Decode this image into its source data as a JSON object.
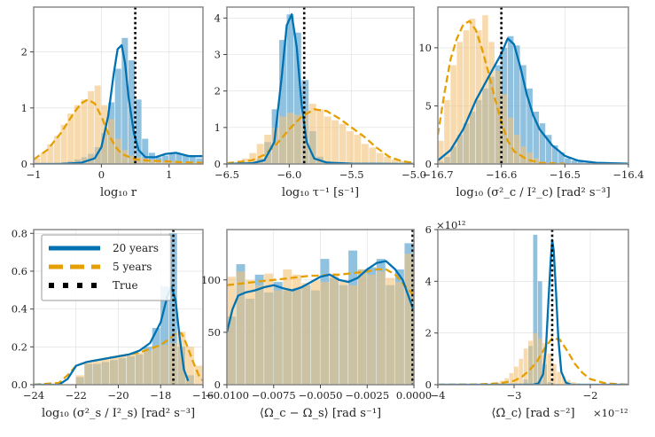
{
  "legend": {
    "entries": [
      {
        "label": "20 years",
        "color": "#0072B2",
        "style": "solid"
      },
      {
        "label": "5 years",
        "color": "#E69F00",
        "style": "dashed"
      },
      {
        "label": "True",
        "color": "#000000",
        "style": "dotted"
      }
    ],
    "panel": 3
  },
  "colors": {
    "twenty_years": "#0072B2",
    "five_years": "#E69F00",
    "true_value": "#000000",
    "hist_twenty": "#6BAED6",
    "hist_five": "#F3C27A",
    "grid": "#dddddd",
    "frame": "#888888"
  },
  "chart_data": [
    {
      "type": "area",
      "xlabel": "log₁₀ r",
      "xlim": [
        -1,
        1.5
      ],
      "ylim": [
        0,
        2.8
      ],
      "xticks": [
        -1,
        0,
        1
      ],
      "xticklabels": [
        "−1",
        "0",
        "1"
      ],
      "yticks": [
        0,
        1,
        2
      ],
      "yticklabels": [
        "0",
        "1",
        "2"
      ],
      "true_value": 0.5,
      "hist_range": [
        -1,
        1.5
      ],
      "hist_bins": 25,
      "series": [
        {
          "name": "20 years",
          "kde_x": [
            -1,
            -0.6,
            -0.3,
            -0.1,
            0.0,
            0.1,
            0.18,
            0.24,
            0.3,
            0.35,
            0.4,
            0.48,
            0.55,
            0.65,
            0.8,
            0.95,
            1.1,
            1.3,
            1.5
          ],
          "kde_y": [
            0,
            0,
            0.02,
            0.1,
            0.3,
            0.85,
            1.6,
            2.05,
            2.12,
            1.8,
            1.2,
            0.55,
            0.25,
            0.12,
            0.12,
            0.18,
            0.2,
            0.14,
            0.14
          ],
          "hist": [
            0,
            0,
            0,
            0.02,
            0.03,
            0.05,
            0.08,
            0.12,
            0.18,
            0.3,
            0.55,
            1.1,
            1.7,
            2.25,
            1.85,
            1.15,
            0.45,
            0.2,
            0.12,
            0.15,
            0.2,
            0.18,
            0.15,
            0.12,
            0.1
          ]
        },
        {
          "name": "5 years",
          "kde_x": [
            -1,
            -0.8,
            -0.6,
            -0.4,
            -0.3,
            -0.2,
            -0.1,
            0.0,
            0.1,
            0.2,
            0.3,
            0.5,
            0.7,
            0.9,
            1.2,
            1.5
          ],
          "kde_y": [
            0.08,
            0.25,
            0.55,
            0.92,
            1.08,
            1.15,
            1.08,
            0.85,
            0.55,
            0.32,
            0.18,
            0.08,
            0.06,
            0.05,
            0.03,
            0.02
          ],
          "hist": [
            0.1,
            0.2,
            0.35,
            0.5,
            0.7,
            0.9,
            1.05,
            1.15,
            1.3,
            1.4,
            1.05,
            0.8,
            0.45,
            0.25,
            0.15,
            0.12,
            0.1,
            0.08,
            0.06,
            0.05,
            0.05,
            0.04,
            0.03,
            0.03,
            0.02
          ]
        }
      ]
    },
    {
      "type": "area",
      "xlabel": "log₁₀ τ⁻¹ [s⁻¹]",
      "xlim": [
        -6.5,
        -5.0
      ],
      "ylim": [
        0,
        4.3
      ],
      "xticks": [
        -6.5,
        -6.0,
        -5.5,
        -5.0
      ],
      "xticklabels": [
        "−6.5",
        "−6.0",
        "−5.5",
        "−5.0"
      ],
      "yticks": [
        0,
        1,
        2,
        3,
        4
      ],
      "yticklabels": [
        "0",
        "1",
        "2",
        "3",
        "4"
      ],
      "true_value": -5.88,
      "hist_range": [
        -6.5,
        -5.0
      ],
      "hist_bins": 25,
      "series": [
        {
          "name": "20 years",
          "kde_x": [
            -6.5,
            -6.3,
            -6.2,
            -6.12,
            -6.06,
            -6.02,
            -5.98,
            -5.94,
            -5.9,
            -5.86,
            -5.8,
            -5.7,
            -5.5,
            -5.0
          ],
          "kde_y": [
            0,
            0.02,
            0.1,
            0.6,
            2.4,
            3.8,
            4.1,
            3.2,
            1.6,
            0.6,
            0.15,
            0.04,
            0.01,
            0
          ],
          "hist": [
            0,
            0,
            0,
            0.05,
            0.15,
            0.6,
            1.5,
            3.4,
            4.1,
            3.6,
            2.3,
            0.9,
            0.2,
            0.08,
            0.03,
            0,
            0,
            0,
            0,
            0,
            0,
            0,
            0,
            0,
            0
          ]
        },
        {
          "name": "5 years",
          "kde_x": [
            -6.5,
            -6.3,
            -6.2,
            -6.1,
            -6.0,
            -5.9,
            -5.8,
            -5.7,
            -5.6,
            -5.5,
            -5.4,
            -5.3,
            -5.2,
            -5.1,
            -5.0
          ],
          "kde_y": [
            0.02,
            0.1,
            0.25,
            0.55,
            0.95,
            1.3,
            1.5,
            1.45,
            1.25,
            1.0,
            0.75,
            0.45,
            0.2,
            0.08,
            0.03
          ],
          "hist": [
            0.03,
            0.05,
            0.15,
            0.3,
            0.55,
            0.8,
            1.0,
            1.3,
            1.4,
            1.35,
            1.45,
            1.65,
            1.5,
            1.3,
            1.2,
            1.1,
            0.9,
            0.8,
            0.55,
            0.45,
            0.3,
            0.2,
            0.12,
            0.08,
            0.05
          ]
        }
      ]
    },
    {
      "type": "area",
      "xlabel": "log₁₀ (σ²_c / I²_c) [rad² s⁻³]",
      "xlim": [
        -16.7,
        -16.4
      ],
      "ylim": [
        0,
        13.5
      ],
      "xticks": [
        -16.7,
        -16.6,
        -16.5,
        -16.4
      ],
      "xticklabels": [
        "−16.7",
        "−16.6",
        "−16.5",
        "−16.4"
      ],
      "yticks": [
        0,
        5,
        10
      ],
      "yticklabels": [
        "0",
        "5",
        "10"
      ],
      "true_value": -16.6,
      "hist_range": [
        -16.7,
        -16.4
      ],
      "hist_bins": 30,
      "series": [
        {
          "name": "20 years",
          "kde_x": [
            -16.7,
            -16.68,
            -16.66,
            -16.64,
            -16.62,
            -16.6,
            -16.59,
            -16.58,
            -16.57,
            -16.56,
            -16.55,
            -16.54,
            -16.52,
            -16.5,
            -16.48,
            -16.45,
            -16.4
          ],
          "kde_y": [
            0.3,
            1.2,
            3.0,
            5.5,
            7.5,
            9.5,
            10.8,
            10.3,
            8.3,
            6.0,
            4.2,
            3.0,
            1.6,
            0.7,
            0.3,
            0.1,
            0.02
          ],
          "hist": [
            0.2,
            0.6,
            1.5,
            2.5,
            3.5,
            4.5,
            5.5,
            6.5,
            7.5,
            8.5,
            10.0,
            11.0,
            10.2,
            8.5,
            6.5,
            4.5,
            3.5,
            2.5,
            1.6,
            1.0,
            0.5,
            0.3,
            0.2,
            0.1,
            0.05,
            0,
            0,
            0,
            0,
            0
          ]
        },
        {
          "name": "5 years",
          "kde_x": [
            -16.7,
            -16.69,
            -16.68,
            -16.67,
            -16.66,
            -16.65,
            -16.64,
            -16.63,
            -16.62,
            -16.61,
            -16.6,
            -16.59,
            -16.58,
            -16.56,
            -16.54,
            -16.5
          ],
          "kde_y": [
            2.5,
            6.0,
            9.0,
            10.8,
            12.0,
            12.3,
            11.5,
            9.8,
            7.8,
            5.6,
            3.6,
            2.0,
            1.1,
            0.4,
            0.1,
            0.02
          ],
          "hist": [
            2.0,
            5.5,
            8.5,
            10.5,
            11.5,
            12.5,
            11.5,
            12.8,
            10.5,
            8.0,
            6.0,
            4.0,
            2.5,
            1.5,
            1.0,
            0.5,
            0.2,
            0.1,
            0.05,
            0,
            0,
            0,
            0,
            0,
            0,
            0,
            0,
            0,
            0,
            0
          ]
        }
      ]
    },
    {
      "type": "area",
      "xlabel": "log₁₀ (σ²_s / I²_s) [rad² s⁻³]",
      "xlim": [
        -24,
        -16
      ],
      "ylim": [
        0,
        0.82
      ],
      "xticks": [
        -24,
        -22,
        -20,
        -18,
        -16
      ],
      "xticklabels": [
        "−24",
        "−22",
        "−20",
        "−18",
        "−16"
      ],
      "yticks": [
        0,
        0.2,
        0.4,
        0.6,
        0.8
      ],
      "yticklabels": [
        "0.0",
        "0.2",
        "0.4",
        "0.6",
        "0.8"
      ],
      "true_value": -17.4,
      "hist_range": [
        -24,
        -16
      ],
      "hist_bins": 20,
      "series": [
        {
          "name": "20 years",
          "kde_x": [
            -24,
            -22.8,
            -22.4,
            -22,
            -21.5,
            -21,
            -20.5,
            -20,
            -19.5,
            -19,
            -18.5,
            -18,
            -17.7,
            -17.5,
            -17.3,
            -17.1,
            -16.9,
            -16.7
          ],
          "kde_y": [
            0,
            0,
            0.03,
            0.1,
            0.12,
            0.13,
            0.14,
            0.15,
            0.16,
            0.18,
            0.22,
            0.33,
            0.46,
            0.52,
            0.45,
            0.25,
            0.08,
            0.02
          ],
          "hist": [
            0,
            0,
            0,
            0,
            0,
            0.04,
            0.11,
            0.11,
            0.12,
            0.13,
            0.14,
            0.15,
            0.16,
            0.2,
            0.3,
            0.52,
            0.8,
            0.2,
            0.05,
            0
          ]
        },
        {
          "name": "5 years",
          "kde_x": [
            -24,
            -22.8,
            -22.4,
            -22,
            -21.5,
            -21,
            -20.5,
            -20,
            -19.5,
            -19,
            -18.5,
            -18,
            -17.5,
            -17.2,
            -17,
            -16.8,
            -16.5,
            -16.2,
            -16
          ],
          "kde_y": [
            0,
            0.01,
            0.05,
            0.1,
            0.12,
            0.13,
            0.14,
            0.15,
            0.16,
            0.17,
            0.19,
            0.21,
            0.25,
            0.28,
            0.27,
            0.22,
            0.13,
            0.05,
            0.02
          ],
          "hist": [
            0,
            0,
            0,
            0,
            0,
            0.05,
            0.12,
            0.13,
            0.14,
            0.15,
            0.16,
            0.16,
            0.17,
            0.18,
            0.2,
            0.21,
            0.22,
            0.28,
            0.2,
            0.1
          ]
        }
      ]
    },
    {
      "type": "area",
      "xlabel": "⟨Ω_c − Ω_s⟩ [rad s⁻¹]",
      "xlim": [
        -0.01,
        0.0
      ],
      "ylim": [
        0,
        148
      ],
      "xticks": [
        -0.01,
        -0.0075,
        -0.005,
        -0.0025,
        0.0
      ],
      "xticklabels": [
        "−0.0100",
        "−0.0075",
        "−0.0050",
        "−0.0025",
        "0.0000"
      ],
      "yticks": [
        0,
        50,
        100
      ],
      "yticklabels": [
        "0",
        "50",
        "100"
      ],
      "true_value": 0.0,
      "hist_range": [
        -0.01,
        0.0
      ],
      "hist_bins": 20,
      "series": [
        {
          "name": "20 years",
          "kde_x": [
            -0.01,
            -0.0097,
            -0.0094,
            -0.009,
            -0.0085,
            -0.008,
            -0.0075,
            -0.007,
            -0.0065,
            -0.006,
            -0.0055,
            -0.005,
            -0.0045,
            -0.004,
            -0.0035,
            -0.003,
            -0.0025,
            -0.002,
            -0.0015,
            -0.001,
            -0.0006,
            -0.0003,
            0.0
          ],
          "kde_y": [
            50,
            72,
            85,
            88,
            90,
            93,
            95,
            92,
            90,
            93,
            98,
            103,
            105,
            100,
            98,
            102,
            110,
            116,
            118,
            110,
            100,
            85,
            70
          ],
          "hist": [
            65,
            115,
            82,
            105,
            88,
            98,
            90,
            92,
            95,
            90,
            120,
            102,
            95,
            128,
            110,
            112,
            120,
            95,
            110,
            135
          ]
        },
        {
          "name": "5 years",
          "kde_x": [
            -0.01,
            -0.0095,
            -0.009,
            -0.0085,
            -0.008,
            -0.0075,
            -0.007,
            -0.0065,
            -0.006,
            -0.0055,
            -0.005,
            -0.0045,
            -0.004,
            -0.0035,
            -0.003,
            -0.0025,
            -0.002,
            -0.0015,
            -0.001,
            -0.0005,
            0.0
          ],
          "kde_y": [
            95,
            96,
            97,
            98,
            99,
            100,
            101,
            102,
            103,
            104,
            104,
            105,
            105,
            106,
            107,
            108,
            110,
            110,
            105,
            95,
            85
          ],
          "hist": [
            103,
            108,
            100,
            95,
            106,
            90,
            110,
            105,
            97,
            100,
            98,
            104,
            100,
            95,
            110,
            105,
            108,
            102,
            98,
            125
          ]
        }
      ]
    },
    {
      "type": "area",
      "xlabel": "⟨Ω̇_c⟩ [rad s⁻²]",
      "x_multiplier": "×10⁻¹²",
      "y_multiplier": "×10¹²",
      "xlim": [
        -4,
        -1.5
      ],
      "ylim": [
        0,
        6
      ],
      "xticks": [
        -4,
        -3,
        -2
      ],
      "xticklabels": [
        "−4",
        "−3",
        "−2"
      ],
      "yticks": [
        0,
        2,
        4,
        6
      ],
      "yticklabels": [
        "0",
        "2",
        "4",
        "6"
      ],
      "true_value": -2.5,
      "hist_range": [
        -4,
        -1.5
      ],
      "hist_bins": 40,
      "series": [
        {
          "name": "20 years",
          "kde_x": [
            -4,
            -2.75,
            -2.68,
            -2.62,
            -2.58,
            -2.55,
            -2.52,
            -2.5,
            -2.48,
            -2.45,
            -2.42,
            -2.38,
            -2.32,
            -2.25,
            -1.5
          ],
          "kde_y": [
            0,
            0,
            0.05,
            0.4,
            1.5,
            3.2,
            4.8,
            5.6,
            5.2,
            3.6,
            1.8,
            0.5,
            0.08,
            0,
            0
          ],
          "hist": [
            0,
            0,
            0,
            0,
            0,
            0,
            0,
            0,
            0,
            0,
            0,
            0,
            0,
            0,
            0,
            0,
            0,
            0,
            0.2,
            1.5,
            5.8,
            4.0,
            0.8,
            0.1,
            0,
            0,
            0,
            0,
            0,
            0,
            0,
            0,
            0,
            0,
            0,
            0,
            0,
            0,
            0,
            0
          ]
        },
        {
          "name": "5 years",
          "kde_x": [
            -4,
            -3.5,
            -3.2,
            -3.0,
            -2.9,
            -2.8,
            -2.7,
            -2.6,
            -2.5,
            -2.4,
            -2.3,
            -2.2,
            -2.1,
            -2.0,
            -1.8,
            -1.5
          ],
          "kde_y": [
            0,
            0.01,
            0.05,
            0.15,
            0.3,
            0.55,
            0.9,
            1.4,
            1.8,
            1.75,
            1.3,
            0.8,
            0.45,
            0.22,
            0.05,
            0
          ],
          "hist": [
            0,
            0,
            0,
            0,
            0,
            0,
            0,
            0,
            0,
            0,
            0,
            0.03,
            0.08,
            0.15,
            0.25,
            0.45,
            0.7,
            1.0,
            1.4,
            1.7,
            2.0,
            1.8,
            1.6,
            1.2,
            0.8,
            0.5,
            0.3,
            0.18,
            0.1,
            0.05,
            0.02,
            0,
            0,
            0,
            0,
            0,
            0,
            0,
            0,
            0
          ]
        }
      ]
    }
  ]
}
